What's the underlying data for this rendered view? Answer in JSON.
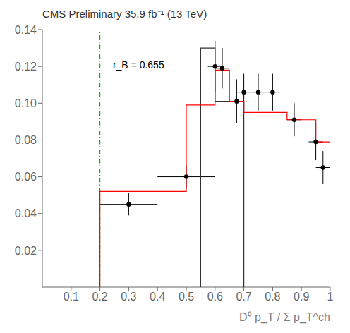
{
  "chart_data": {
    "type": "step",
    "title": "CMS Preliminary 35.9 fb⁻¹ (13 TeV)",
    "x_label": "D⁰ p_T / Σ p_T^ch",
    "xlim": [
      0,
      1.0
    ],
    "xticks": [
      0.1,
      0.2,
      0.3,
      0.4,
      0.5,
      0.6,
      0.7,
      0.8,
      0.9,
      1
    ],
    "ylim": [
      0,
      0.14
    ],
    "yticks": [
      0.02,
      0.04,
      0.06,
      0.08,
      {
        "value": 0.1,
        "label": "0.10"
      },
      0.12,
      0.14
    ],
    "grid": false,
    "series": [
      {
        "type": "step",
        "color": "#333333",
        "bins": [
          0.55,
          0.6,
          0.65,
          0.7
        ],
        "values": [
          0.13,
          0.101,
          0.101
        ]
      },
      {
        "type": "step",
        "color": "#ff0000",
        "bins": [
          0.2,
          0.4,
          0.5,
          0.55,
          0.6,
          0.65,
          0.7,
          0.75,
          0.8,
          0.85,
          0.9,
          0.95,
          1.0
        ],
        "values": [
          0.052,
          0.052,
          0.099,
          0.099,
          0.118,
          0.101,
          0.095,
          0.095,
          0.095,
          0.091,
          0.091,
          0.079
        ]
      },
      {
        "type": "vline",
        "color": "#00bb00",
        "x": 0.2,
        "line_style": "dashdot"
      },
      {
        "type": "errorbar",
        "color": "#000000",
        "marker": "circle",
        "x": [
          0.3,
          0.5,
          0.6,
          0.625,
          0.675,
          0.7,
          0.75,
          0.8,
          0.875,
          0.95,
          0.975
        ],
        "values": [
          0.045,
          0.06,
          0.12,
          0.119,
          0.101,
          0.106,
          0.106,
          0.106,
          0.091,
          0.079,
          0.065
        ],
        "xerr": [
          0.1,
          0.1,
          0.025,
          0.025,
          0.025,
          0.025,
          0.025,
          0.025,
          0.025,
          0.025,
          0.025
        ],
        "yerr": [
          0.006,
          0.006,
          0.014,
          0.011,
          0.012,
          0.01,
          0.01,
          0.01,
          0.009,
          0.01,
          0.009
        ]
      }
    ],
    "annotations": [
      {
        "text": "r_B = 0.655",
        "x": 0.24,
        "y": 0.121
      }
    ]
  }
}
